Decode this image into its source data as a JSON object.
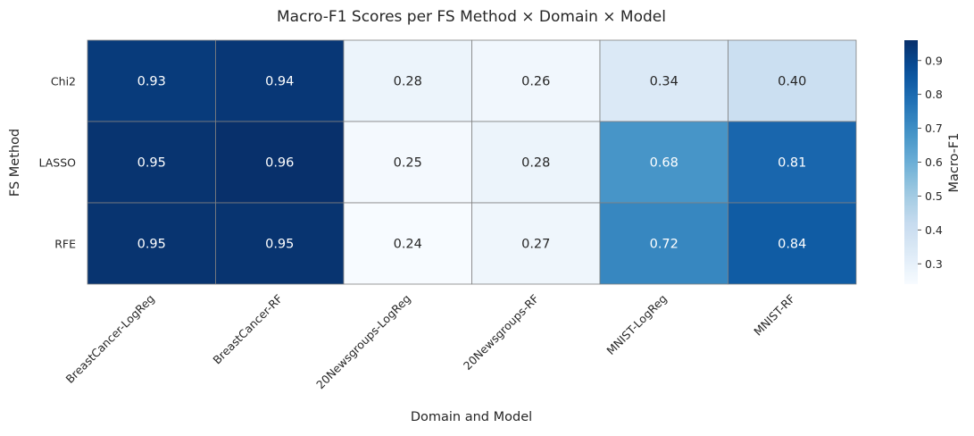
{
  "chart_data": {
    "type": "heatmap",
    "title": "Macro-F1 Scores per FS Method × Domain × Model",
    "xlabel": "Domain and Model",
    "ylabel": "FS Method",
    "rows": [
      "Chi2",
      "LASSO",
      "RFE"
    ],
    "columns": [
      "BreastCancer-LogReg",
      "BreastCancer-RF",
      "20Newsgroups-LogReg",
      "20Newsgroups-RF",
      "MNIST-LogReg",
      "MNIST-RF"
    ],
    "values": [
      [
        0.93,
        0.94,
        0.28,
        0.26,
        0.34,
        0.4
      ],
      [
        0.95,
        0.96,
        0.25,
        0.28,
        0.68,
        0.81
      ],
      [
        0.95,
        0.95,
        0.24,
        0.27,
        0.72,
        0.84
      ]
    ],
    "value_format": "0.00",
    "colormap": "Blues",
    "colorbar": {
      "label": "Macro-F1",
      "range": [
        0.24,
        0.96
      ],
      "ticks": [
        "0.3",
        "0.4",
        "0.5",
        "0.6",
        "0.7",
        "0.8",
        "0.9"
      ]
    },
    "cell_border_color": "#808080",
    "text_color_dark": "#262626",
    "text_color_light": "#ffffff"
  }
}
